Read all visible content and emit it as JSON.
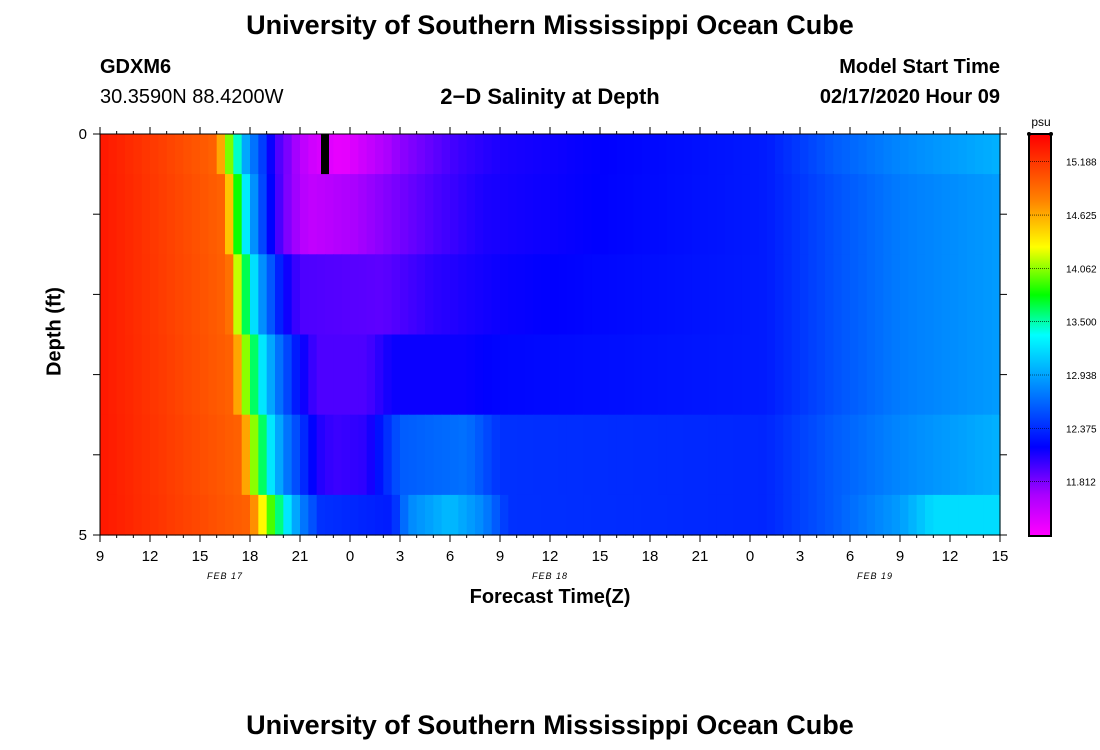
{
  "page": {
    "title_top": "University of Southern Mississippi Ocean Cube",
    "title_bottom": "University of Southern Mississippi Ocean Cube",
    "station_id": "GDXM6",
    "station_coords": "30.3590N 88.4200W",
    "model_start_label": "Model Start Time",
    "model_start_value": "02/17/2020 Hour 09"
  },
  "chart_data": {
    "type": "heatmap",
    "title": "2−D Salinity at Depth",
    "xlabel": "Forecast Time(Z)",
    "ylabel": "Depth (ft)",
    "x_range_hours": [
      0,
      54
    ],
    "x_tick_labels": [
      "9",
      "12",
      "15",
      "18",
      "21",
      "0",
      "3",
      "6",
      "9",
      "12",
      "15",
      "18",
      "21",
      "0",
      "3",
      "6",
      "9",
      "12",
      "15"
    ],
    "date_labels": [
      {
        "text": "FEB 17",
        "hour": 7.5
      },
      {
        "text": "FEB 18",
        "hour": 27
      },
      {
        "text": "FEB 19",
        "hour": 46.5
      }
    ],
    "y_range_ft": [
      0,
      5
    ],
    "y_tick_labels": [
      {
        "text": "0",
        "value": 0
      },
      {
        "text": "5",
        "value": 5
      }
    ],
    "depth_layers_ft": [
      0.25,
      1.0,
      2.0,
      3.0,
      4.0,
      4.75
    ],
    "colorbar": {
      "unit": "psu",
      "min": 11.25,
      "max": 15.47,
      "tick_values": [
        15.188,
        14.625,
        14.062,
        13.5,
        12.938,
        12.375,
        11.812
      ],
      "tick_labels": [
        "15.188",
        "14.625",
        "14.062",
        "13.500",
        "12.938",
        "12.375",
        "11.812"
      ]
    },
    "marker": {
      "hour": 13.5,
      "layer": 0,
      "color": "#000000"
    },
    "rows": [
      {
        "depth_ft": 0.25,
        "keypoints": [
          [
            0,
            15.35
          ],
          [
            7,
            14.95
          ],
          [
            7.6,
            14.2
          ],
          [
            8.2,
            13.5
          ],
          [
            8.8,
            12.9
          ],
          [
            9.6,
            12.55
          ],
          [
            10.5,
            12.0
          ],
          [
            12.5,
            11.5
          ],
          [
            14.5,
            11.35
          ],
          [
            18,
            11.75
          ],
          [
            21.5,
            12.0
          ],
          [
            24,
            12.1
          ],
          [
            40,
            12.3
          ],
          [
            44,
            12.6
          ],
          [
            48,
            12.8
          ],
          [
            54,
            13.0
          ]
        ]
      },
      {
        "depth_ft": 1.0,
        "keypoints": [
          [
            0,
            15.35
          ],
          [
            7.5,
            14.95
          ],
          [
            8.0,
            14.1
          ],
          [
            8.6,
            13.4
          ],
          [
            9.3,
            12.8
          ],
          [
            10.2,
            12.2
          ],
          [
            11.0,
            11.85
          ],
          [
            12.5,
            11.55
          ],
          [
            15,
            11.65
          ],
          [
            20,
            11.95
          ],
          [
            23,
            12.1
          ],
          [
            40,
            12.3
          ],
          [
            44,
            12.55
          ],
          [
            48,
            12.75
          ],
          [
            54,
            12.9
          ]
        ]
      },
      {
        "depth_ft": 2.0,
        "keypoints": [
          [
            0,
            15.35
          ],
          [
            7.7,
            14.95
          ],
          [
            8.3,
            14.1
          ],
          [
            9.0,
            13.4
          ],
          [
            9.8,
            12.8
          ],
          [
            11.0,
            12.2
          ],
          [
            12,
            11.95
          ],
          [
            17,
            11.9
          ],
          [
            20,
            12.05
          ],
          [
            24,
            12.15
          ],
          [
            40,
            12.3
          ],
          [
            44,
            12.55
          ],
          [
            48,
            12.75
          ],
          [
            54,
            12.9
          ]
        ]
      },
      {
        "depth_ft": 3.0,
        "keypoints": [
          [
            0,
            15.35
          ],
          [
            8.0,
            14.95
          ],
          [
            8.7,
            14.1
          ],
          [
            9.5,
            13.4
          ],
          [
            10.5,
            12.8
          ],
          [
            12,
            12.2
          ],
          [
            13,
            11.95
          ],
          [
            16,
            11.95
          ],
          [
            17.5,
            12.15
          ],
          [
            22,
            12.15
          ],
          [
            24,
            12.2
          ],
          [
            40,
            12.3
          ],
          [
            44,
            12.55
          ],
          [
            48,
            12.75
          ],
          [
            54,
            12.9
          ]
        ]
      },
      {
        "depth_ft": 4.0,
        "keypoints": [
          [
            0,
            15.35
          ],
          [
            8.5,
            14.95
          ],
          [
            9.2,
            14.1
          ],
          [
            10.0,
            13.4
          ],
          [
            11.0,
            12.8
          ],
          [
            13,
            12.1
          ],
          [
            14,
            12.0
          ],
          [
            16,
            12.05
          ],
          [
            18,
            12.6
          ],
          [
            22,
            12.7
          ],
          [
            24,
            12.4
          ],
          [
            40,
            12.35
          ],
          [
            44,
            12.6
          ],
          [
            48,
            12.8
          ],
          [
            54,
            13.0
          ]
        ]
      },
      {
        "depth_ft": 4.75,
        "keypoints": [
          [
            0,
            15.35
          ],
          [
            9.0,
            14.95
          ],
          [
            10.0,
            14.1
          ],
          [
            11.0,
            13.4
          ],
          [
            12.0,
            12.8
          ],
          [
            13.2,
            12.4
          ],
          [
            17.5,
            12.3
          ],
          [
            18.5,
            12.8
          ],
          [
            21,
            13.05
          ],
          [
            23,
            12.8
          ],
          [
            24.5,
            12.4
          ],
          [
            40,
            12.35
          ],
          [
            44,
            12.6
          ],
          [
            48,
            12.9
          ],
          [
            50,
            13.2
          ],
          [
            54,
            13.2
          ]
        ]
      }
    ]
  }
}
